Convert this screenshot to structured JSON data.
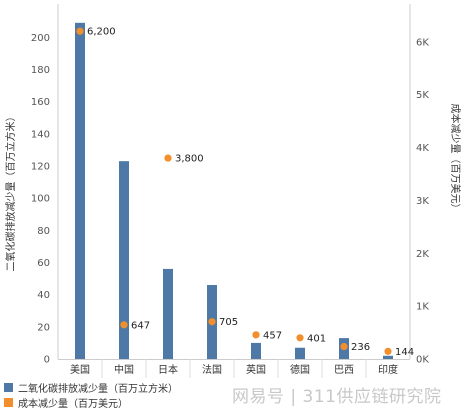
{
  "chart_data": {
    "type": "bar",
    "categories": [
      "美国",
      "中国",
      "日本",
      "法国",
      "英国",
      "德国",
      "巴西",
      "印度"
    ],
    "series": [
      {
        "name": "二氧化碳排放减少量（百万立方米）",
        "kind": "bar",
        "axis": "left",
        "color": "#4e79a7",
        "values": [
          209,
          123,
          56,
          46,
          10,
          7,
          13,
          2
        ]
      },
      {
        "name": "成本减少量（百万美元）",
        "kind": "point",
        "axis": "right",
        "color": "#f28e2b",
        "values": [
          6200,
          647,
          3800,
          705,
          457,
          401,
          236,
          144
        ],
        "labels": [
          "6,200",
          "647",
          "3,800",
          "705",
          "457",
          "401",
          "236",
          "144"
        ]
      }
    ],
    "ylabel": "二氧化碳排放减少量（百万立方米）",
    "y2label": "成本减少量（百万美元）",
    "ylim": [
      0,
      212
    ],
    "y2lim": [
      0,
      6450
    ],
    "yticks": [
      0,
      20,
      40,
      60,
      80,
      100,
      120,
      140,
      160,
      180,
      200
    ],
    "y2ticks": [
      0,
      1000,
      2000,
      3000,
      4000,
      5000,
      6000
    ],
    "y2ticklabels": [
      "0K",
      "1K",
      "2K",
      "3K",
      "4K",
      "5K",
      "6K"
    ],
    "grid": false,
    "legend_position": "bottom-left"
  },
  "watermark": "网易号 | 311供应链研究院"
}
